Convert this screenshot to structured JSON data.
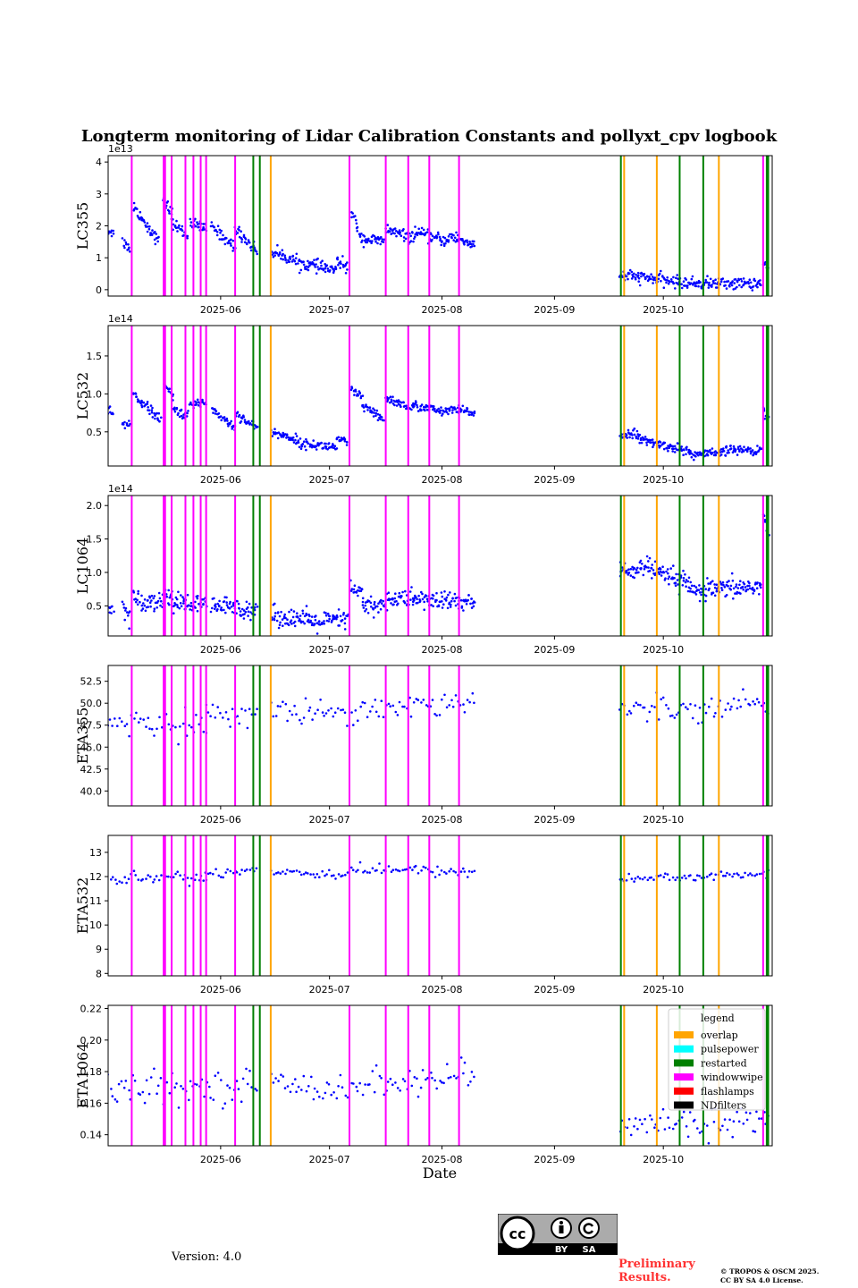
{
  "chart_data": {
    "type": "scatter",
    "title": "Longterm monitoring of Lidar Calibration Constants and pollyxt_cpv logbook",
    "xlabel": "Date",
    "x_range": [
      "2025-05-01",
      "2025-10-31"
    ],
    "x_ticks": [
      {
        "label": "2025-06",
        "day": 31
      },
      {
        "label": "2025-07",
        "day": 61
      },
      {
        "label": "2025-08",
        "day": 92
      },
      {
        "label": "2025-09",
        "day": 123
      },
      {
        "label": "2025-10",
        "day": 153
      }
    ],
    "logbook_events": {
      "windowwipe": [
        6.5,
        15.3,
        15.7,
        17.5,
        21.3,
        23.5,
        25.5,
        27,
        35,
        66.5,
        76.5,
        82.7,
        88.5,
        96.7,
        180.5
      ],
      "restarted": [
        40,
        41.8,
        141.3,
        157.5,
        164,
        181.5,
        181.9
      ],
      "overlap": [
        44.8,
        142.2,
        151.2,
        168.3
      ]
    },
    "legend": {
      "title": "legend",
      "entries": [
        {
          "label": "overlap",
          "color": "#ffa500"
        },
        {
          "label": "pulsepower",
          "color": "#00ffff"
        },
        {
          "label": "restarted",
          "color": "#008000"
        },
        {
          "label": "windowwipe",
          "color": "#ff00ff"
        },
        {
          "label": "flashlamps",
          "color": "#ff0000"
        },
        {
          "label": "NDfilters",
          "color": "#000000"
        }
      ]
    },
    "point_color": "#0000ff",
    "panels": [
      {
        "ylabel": "LC355",
        "offset_text": "1e13",
        "ylim": [
          -0.2,
          4.2
        ],
        "yticks": [
          0,
          1,
          2,
          3,
          4
        ],
        "tick_labels": [
          "0",
          "1",
          "2",
          "3",
          "4"
        ],
        "segments": [
          {
            "x": [
              0,
              1.5
            ],
            "y": [
              1.85,
              1.8
            ]
          },
          {
            "x": [
              4,
              6
            ],
            "y": [
              1.5,
              1.3
            ]
          },
          {
            "x": [
              7,
              14
            ],
            "y": [
              2.6,
              1.5
            ]
          },
          {
            "x": [
              15.2,
              17.5
            ],
            "y": [
              2.8,
              2.4
            ]
          },
          {
            "x": [
              17.5,
              22
            ],
            "y": [
              2.1,
              1.7
            ]
          },
          {
            "x": [
              22.5,
              27
            ],
            "y": [
              2.1,
              1.9
            ]
          },
          {
            "x": [
              28.5,
              35
            ],
            "y": [
              2.0,
              1.3
            ]
          },
          {
            "x": [
              35,
              41
            ],
            "y": [
              1.9,
              1.2
            ]
          },
          {
            "x": [
              45,
              55
            ],
            "y": [
              1.2,
              0.75
            ]
          },
          {
            "x": [
              55,
              63
            ],
            "y": [
              0.8,
              0.6
            ]
          },
          {
            "x": [
              63,
              66
            ],
            "y": [
              0.9,
              0.7
            ]
          },
          {
            "x": [
              67,
              70
            ],
            "y": [
              2.4,
              1.6
            ]
          },
          {
            "x": [
              70,
              76
            ],
            "y": [
              1.6,
              1.5
            ]
          },
          {
            "x": [
              76.5,
              84
            ],
            "y": [
              1.9,
              1.6
            ]
          },
          {
            "x": [
              84,
              94
            ],
            "y": [
              1.8,
              1.5
            ]
          },
          {
            "x": [
              94,
              101
            ],
            "y": [
              1.7,
              1.4
            ]
          },
          {
            "x": [
              141,
              146
            ],
            "y": [
              0.45,
              0.4
            ]
          },
          {
            "x": [
              146,
              160
            ],
            "y": [
              0.4,
              0.2
            ]
          },
          {
            "x": [
              160,
              180
            ],
            "y": [
              0.2,
              0.2
            ]
          },
          {
            "x": [
              180.5,
              182
            ],
            "y": [
              0.8,
              0.7
            ]
          }
        ],
        "noise": 0.15
      },
      {
        "ylabel": "LC532",
        "offset_text": "1e14",
        "ylim": [
          0.05,
          1.9
        ],
        "yticks": [
          0.5,
          1.0,
          1.5
        ],
        "tick_labels": [
          "0.5",
          "1.0",
          "1.5"
        ],
        "segments": [
          {
            "x": [
              0,
              1.5
            ],
            "y": [
              0.75,
              0.72
            ]
          },
          {
            "x": [
              4,
              6
            ],
            "y": [
              0.6,
              0.6
            ]
          },
          {
            "x": [
              7,
              14.5
            ],
            "y": [
              1.0,
              0.65
            ]
          },
          {
            "x": [
              15.2,
              18
            ],
            "y": [
              1.15,
              0.95
            ]
          },
          {
            "x": [
              18,
              22
            ],
            "y": [
              0.8,
              0.7
            ]
          },
          {
            "x": [
              22.5,
              27
            ],
            "y": [
              0.85,
              0.9
            ]
          },
          {
            "x": [
              28.5,
              35
            ],
            "y": [
              0.8,
              0.55
            ]
          },
          {
            "x": [
              35,
              41
            ],
            "y": [
              0.75,
              0.55
            ]
          },
          {
            "x": [
              45,
              52
            ],
            "y": [
              0.5,
              0.4
            ]
          },
          {
            "x": [
              52,
              63
            ],
            "y": [
              0.35,
              0.3
            ]
          },
          {
            "x": [
              63,
              66
            ],
            "y": [
              0.4,
              0.35
            ]
          },
          {
            "x": [
              67,
              70
            ],
            "y": [
              1.05,
              0.95
            ]
          },
          {
            "x": [
              70,
              76
            ],
            "y": [
              0.85,
              0.65
            ]
          },
          {
            "x": [
              76.5,
              84
            ],
            "y": [
              0.95,
              0.8
            ]
          },
          {
            "x": [
              84,
              94
            ],
            "y": [
              0.85,
              0.75
            ]
          },
          {
            "x": [
              94,
              101
            ],
            "y": [
              0.8,
              0.75
            ]
          },
          {
            "x": [
              141,
              146
            ],
            "y": [
              0.45,
              0.5
            ]
          },
          {
            "x": [
              146,
              160
            ],
            "y": [
              0.4,
              0.25
            ]
          },
          {
            "x": [
              160,
              170
            ],
            "y": [
              0.2,
              0.22
            ]
          },
          {
            "x": [
              170,
              180
            ],
            "y": [
              0.27,
              0.25
            ]
          },
          {
            "x": [
              180.5,
              182
            ],
            "y": [
              0.8,
              0.7
            ]
          }
        ],
        "noise": 0.05
      },
      {
        "ylabel": "LC1064",
        "offset_text": "1e14",
        "ylim": [
          0.05,
          2.15
        ],
        "yticks": [
          0.5,
          1.0,
          1.5,
          2.0
        ],
        "tick_labels": [
          "0.5",
          "1.0",
          "1.5",
          "2.0"
        ],
        "segments": [
          {
            "x": [
              0,
              1.5
            ],
            "y": [
              0.45,
              0.45
            ]
          },
          {
            "x": [
              4,
              6
            ],
            "y": [
              0.45,
              0.4
            ]
          },
          {
            "x": [
              7,
              15
            ],
            "y": [
              0.6,
              0.55
            ]
          },
          {
            "x": [
              15.2,
              18
            ],
            "y": [
              0.7,
              0.6
            ]
          },
          {
            "x": [
              18,
              27
            ],
            "y": [
              0.55,
              0.5
            ]
          },
          {
            "x": [
              28.5,
              41
            ],
            "y": [
              0.5,
              0.45
            ]
          },
          {
            "x": [
              45,
              55
            ],
            "y": [
              0.35,
              0.3
            ]
          },
          {
            "x": [
              55,
              66
            ],
            "y": [
              0.25,
              0.3
            ]
          },
          {
            "x": [
              67,
              70
            ],
            "y": [
              0.75,
              0.7
            ]
          },
          {
            "x": [
              70,
              76
            ],
            "y": [
              0.5,
              0.5
            ]
          },
          {
            "x": [
              76.5,
              84
            ],
            "y": [
              0.6,
              0.6
            ]
          },
          {
            "x": [
              84,
              101
            ],
            "y": [
              0.6,
              0.55
            ]
          },
          {
            "x": [
              141,
              150
            ],
            "y": [
              1.0,
              1.1
            ]
          },
          {
            "x": [
              150,
              160
            ],
            "y": [
              1.0,
              0.85
            ]
          },
          {
            "x": [
              160,
              180
            ],
            "y": [
              0.7,
              0.8
            ]
          },
          {
            "x": [
              180.5,
              182
            ],
            "y": [
              1.9,
              1.5
            ]
          }
        ],
        "noise": 0.12
      },
      {
        "ylabel": "ETA355",
        "offset_text": "",
        "ylim": [
          38.3,
          54.3
        ],
        "yticks": [
          40.0,
          42.5,
          45.0,
          47.5,
          50.0,
          52.5
        ],
        "tick_labels": [
          "40.0",
          "42.5",
          "45.0",
          "47.5",
          "50.0",
          "52.5"
        ],
        "segments": [
          {
            "x": [
              0,
              27
            ],
            "y": [
              47.5,
              47.8
            ]
          },
          {
            "x": [
              27,
              41
            ],
            "y": [
              48.5,
              49
            ]
          },
          {
            "x": [
              45,
              66
            ],
            "y": [
              48.8,
              49.3
            ]
          },
          {
            "x": [
              67,
              101
            ],
            "y": [
              49.2,
              50.3
            ]
          },
          {
            "x": [
              141,
              182
            ],
            "y": [
              49.2,
              50
            ]
          }
        ],
        "noise": 1.2,
        "sparse": true
      },
      {
        "ylabel": "ETA532",
        "offset_text": "",
        "ylim": [
          7.9,
          13.7
        ],
        "yticks": [
          8,
          9,
          10,
          11,
          12,
          13
        ],
        "tick_labels": [
          "8",
          "9",
          "10",
          "11",
          "12",
          "13"
        ],
        "segments": [
          {
            "x": [
              0,
              27
            ],
            "y": [
              11.9,
              12.0
            ]
          },
          {
            "x": [
              27,
              41
            ],
            "y": [
              12.1,
              12.3
            ]
          },
          {
            "x": [
              45,
              66
            ],
            "y": [
              12.2,
              12.1
            ]
          },
          {
            "x": [
              67,
              101
            ],
            "y": [
              12.3,
              12.2
            ]
          },
          {
            "x": [
              141,
              182
            ],
            "y": [
              11.9,
              12.1
            ]
          }
        ],
        "noise": 0.18,
        "sparse": true
      },
      {
        "ylabel": "ETA1064",
        "offset_text": "",
        "ylim": [
          0.133,
          0.222
        ],
        "yticks": [
          0.14,
          0.16,
          0.18,
          0.2,
          0.22
        ],
        "tick_labels": [
          "0.14",
          "0.16",
          "0.18",
          "0.20",
          "0.22"
        ],
        "segments": [
          {
            "x": [
              0,
              41
            ],
            "y": [
              0.168,
              0.172
            ]
          },
          {
            "x": [
              45,
              66
            ],
            "y": [
              0.172,
              0.17
            ]
          },
          {
            "x": [
              67,
              101
            ],
            "y": [
              0.171,
              0.177
            ]
          },
          {
            "x": [
              141,
              182
            ],
            "y": [
              0.145,
              0.15
            ]
          }
        ],
        "noise": 0.008,
        "sparse": true
      }
    ]
  },
  "footer": {
    "version": "Version: 4.0",
    "preliminary_line1": "Preliminary",
    "preliminary_line2": "Results.",
    "copyright_line1": "© TROPOS & OSCM 2025.",
    "copyright_line2": "CC BY SA 4.0 License.",
    "cc_by": "BY",
    "cc_sa": "SA"
  }
}
